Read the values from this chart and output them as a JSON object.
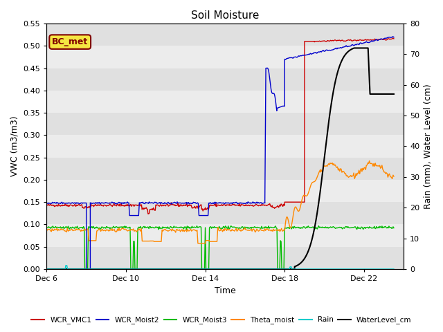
{
  "title": "Soil Moisture",
  "xlabel": "Time",
  "ylabel_left": "VWC (m3/m3)",
  "ylabel_right": "Rain (mm), Water Level (cm)",
  "ylim_left": [
    0.0,
    0.55
  ],
  "ylim_right": [
    0,
    80
  ],
  "yticks_left": [
    0.0,
    0.05,
    0.1,
    0.15,
    0.2,
    0.25,
    0.3,
    0.35,
    0.4,
    0.45,
    0.5,
    0.55
  ],
  "yticks_right": [
    0,
    10,
    20,
    30,
    40,
    50,
    60,
    70,
    80
  ],
  "plot_bg_color": "#e8e8e8",
  "annotation_label": "BC_met",
  "annotation_bg": "#f5e642",
  "annotation_border": "#800000",
  "colors": {
    "WCR_VMC1": "#cc0000",
    "WCR_Moist2": "#0000cc",
    "WCR_Moist3": "#00bb00",
    "Theta_moist": "#ff8800",
    "Rain": "#00cccc",
    "WaterLevel_cm": "#000000"
  },
  "xtick_positions": [
    0,
    4,
    8,
    12,
    16
  ],
  "xtick_labels": [
    "Dec 6",
    "Dec 10",
    "Dec 14",
    "Dec 18",
    "Dec 22"
  ],
  "xlim": [
    0,
    18
  ],
  "legend_labels": [
    "WCR_VMC1",
    "WCR_Moist2",
    "WCR_Moist3",
    "Theta_moist",
    "Rain",
    "WaterLevel_cm"
  ]
}
